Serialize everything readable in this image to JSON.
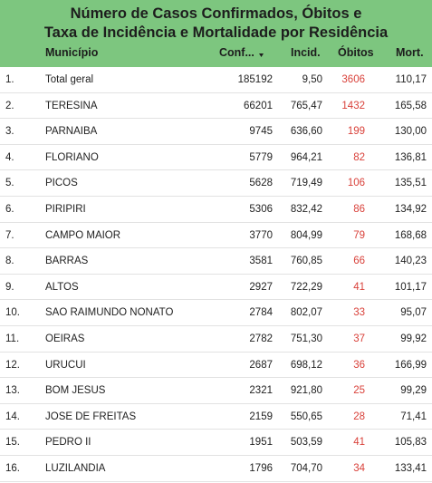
{
  "header": {
    "title_lines": [
      "Número de Casos Confirmados, Óbitos e",
      "Taxa de Incidência e Mortalidade por Residência"
    ],
    "columns": [
      "Município",
      "Conf...",
      "Incid.",
      "Óbitos",
      "Mort."
    ]
  },
  "table": {
    "rows": [
      [
        "1.",
        "Total geral",
        "185192",
        "9,50",
        "3606",
        "110,17"
      ],
      [
        "2.",
        "TERESINA",
        "66201",
        "765,47",
        "1432",
        "165,58"
      ],
      [
        "3.",
        "PARNAIBA",
        "9745",
        "636,60",
        "199",
        "130,00"
      ],
      [
        "4.",
        "FLORIANO",
        "5779",
        "964,21",
        "82",
        "136,81"
      ],
      [
        "5.",
        "PICOS",
        "5628",
        "719,49",
        "106",
        "135,51"
      ],
      [
        "6.",
        "PIRIPIRI",
        "5306",
        "832,42",
        "86",
        "134,92"
      ],
      [
        "7.",
        "CAMPO MAIOR",
        "3770",
        "804,99",
        "79",
        "168,68"
      ],
      [
        "8.",
        "BARRAS",
        "3581",
        "760,85",
        "66",
        "140,23"
      ],
      [
        "9.",
        "ALTOS",
        "2927",
        "722,29",
        "41",
        "101,17"
      ],
      [
        "10.",
        "SAO RAIMUNDO NONATO",
        "2784",
        "802,07",
        "33",
        "95,07"
      ],
      [
        "11.",
        "OEIRAS",
        "2782",
        "751,30",
        "37",
        "99,92"
      ],
      [
        "12.",
        "URUCUI",
        "2687",
        "698,12",
        "36",
        "166,99"
      ],
      [
        "13.",
        "BOM JESUS",
        "2321",
        "921,80",
        "25",
        "99,29"
      ],
      [
        "14.",
        "JOSE DE FREITAS",
        "2159",
        "550,65",
        "28",
        "71,41"
      ],
      [
        "15.",
        "PEDRO II",
        "1951",
        "503,59",
        "41",
        "105,83"
      ],
      [
        "16.",
        "LUZILANDIA",
        "1796",
        "704,70",
        "34",
        "133,41"
      ]
    ]
  }
}
